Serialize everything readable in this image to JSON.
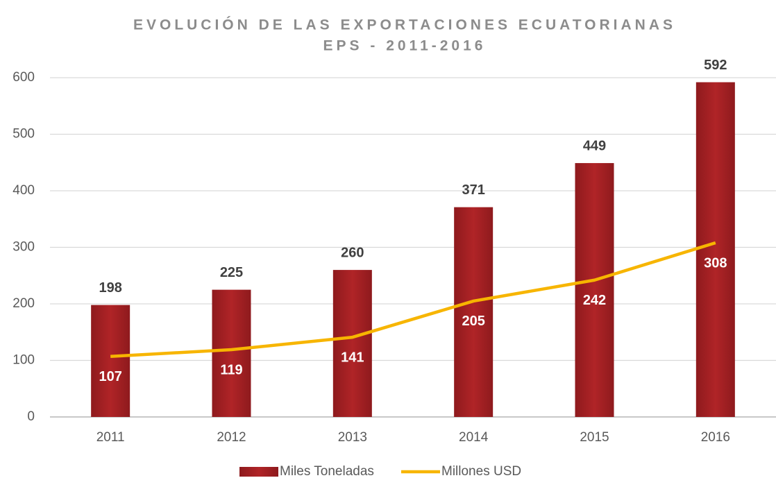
{
  "chart_data": {
    "type": "bar",
    "title": [
      "EVOLUCIÓN DE LAS EXPORTACIONES ECUATORIANAS",
      "EPS - 2011-2016"
    ],
    "categories": [
      "2011",
      "2012",
      "2013",
      "2014",
      "2015",
      "2016"
    ],
    "series": [
      {
        "name": "Miles Toneladas",
        "type": "bar",
        "color": "#a51e22",
        "values": [
          198,
          225,
          260,
          371,
          449,
          592
        ]
      },
      {
        "name": "Millones USD",
        "type": "line",
        "color": "#f7b500",
        "values": [
          107,
          119,
          141,
          205,
          242,
          308
        ]
      }
    ],
    "ylim": [
      0,
      600
    ],
    "yticks": [
      0,
      100,
      200,
      300,
      400,
      500,
      600
    ],
    "grid": true,
    "legend": "bottom"
  }
}
